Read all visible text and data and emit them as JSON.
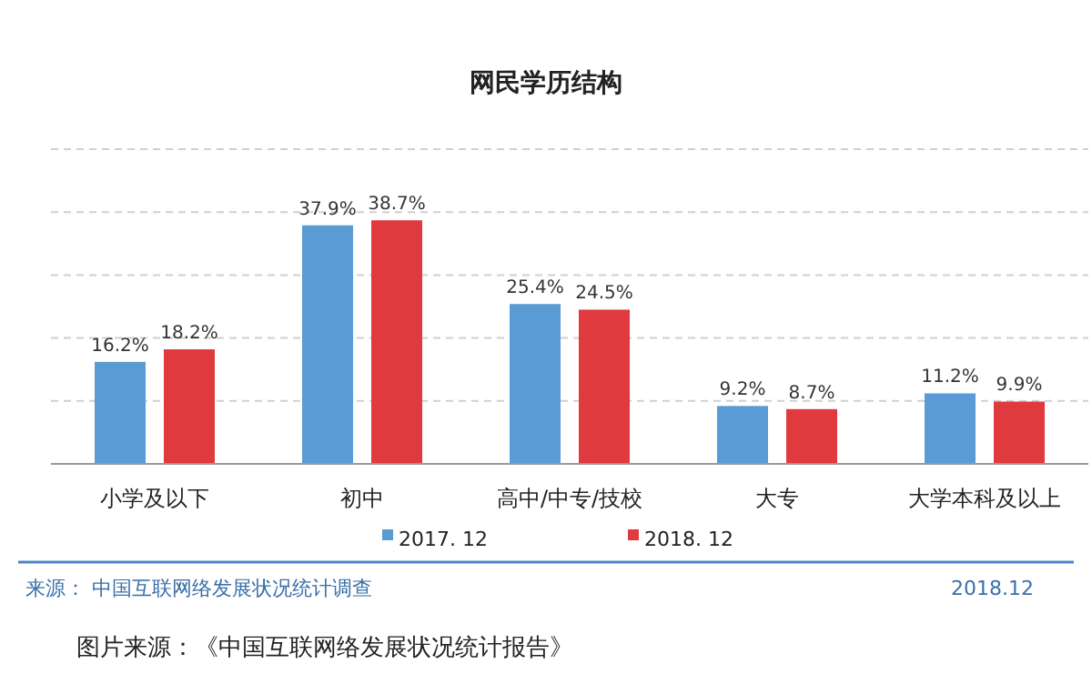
{
  "chart_data": {
    "type": "bar",
    "title": "网民学历结构",
    "categories": [
      "小学及以下",
      "初中",
      "高中/中专/技校",
      "大专",
      "大学本科及以上"
    ],
    "series": [
      {
        "name": "2017. 12",
        "color": "#5b9bd5",
        "values": [
          16.2,
          37.9,
          25.4,
          9.2,
          11.2
        ],
        "value_labels": [
          "16.2%",
          "37.9%",
          "25.4%",
          "9.2%",
          "11.2%"
        ]
      },
      {
        "name": "2018. 12",
        "color": "#e0393e",
        "values": [
          18.2,
          38.7,
          24.5,
          8.7,
          9.9
        ],
        "value_labels": [
          "18.2%",
          "38.7%",
          "24.5%",
          "8.7%",
          "9.9%"
        ]
      }
    ],
    "ylim": [
      0,
      50
    ],
    "yticks": [
      {
        "value": 10,
        "label": null
      },
      {
        "value": 20,
        "label": null
      },
      {
        "value": 30,
        "label": null
      },
      {
        "value": 40,
        "label": null
      },
      {
        "value": 50,
        "label": null
      }
    ],
    "grid": "y",
    "legend": "bottom",
    "tick_labels": "x",
    "annotations": [
      "来源： 中国互联网络发展状况统计调查",
      "2018.12",
      "图片来源：《中国互联网络发展状况统计报告》"
    ]
  }
}
